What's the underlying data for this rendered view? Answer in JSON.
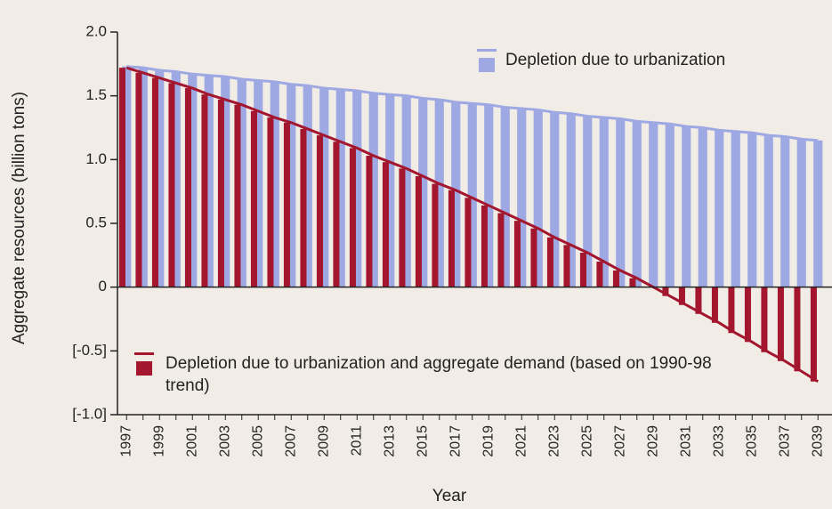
{
  "chart_data": {
    "type": "bar",
    "y_label": "Aggregate resources (billion tons)",
    "x_label": "Year",
    "categories": [
      "1997",
      null,
      "1999",
      null,
      "2001",
      null,
      "2003",
      null,
      "2005",
      null,
      "2007",
      null,
      "2009",
      null,
      "2011",
      null,
      "2013",
      null,
      "2015",
      null,
      "2017",
      null,
      "2019",
      null,
      "2021",
      null,
      "2023",
      null,
      "2025",
      null,
      "2027",
      null,
      "2029",
      null,
      "2031",
      null,
      "2033",
      null,
      "2035",
      null,
      "2037",
      null,
      "2039"
    ],
    "series": [
      {
        "name": "Depletion due to urbanization",
        "color": "#9ea8e2",
        "values": [
          1.73,
          1.72,
          1.7,
          1.69,
          1.67,
          1.66,
          1.65,
          1.63,
          1.62,
          1.61,
          1.59,
          1.58,
          1.56,
          1.55,
          1.54,
          1.52,
          1.51,
          1.5,
          1.48,
          1.47,
          1.45,
          1.44,
          1.43,
          1.41,
          1.4,
          1.39,
          1.37,
          1.36,
          1.34,
          1.33,
          1.32,
          1.3,
          1.29,
          1.28,
          1.26,
          1.25,
          1.23,
          1.22,
          1.21,
          1.19,
          1.18,
          1.16,
          1.15
        ]
      },
      {
        "name": "Depletion due to urbanization and aggregate demand (based on 1990-98 trend)",
        "color": "#a3162e",
        "values": [
          1.72,
          1.68,
          1.64,
          1.6,
          1.56,
          1.51,
          1.47,
          1.43,
          1.38,
          1.33,
          1.29,
          1.24,
          1.19,
          1.14,
          1.09,
          1.03,
          0.98,
          0.93,
          0.87,
          0.81,
          0.76,
          0.7,
          0.64,
          0.58,
          0.52,
          0.46,
          0.39,
          0.33,
          0.27,
          0.2,
          0.13,
          0.07,
          0.0,
          -0.07,
          -0.14,
          -0.21,
          -0.28,
          -0.36,
          -0.43,
          -0.51,
          -0.58,
          -0.66,
          -0.74
        ]
      }
    ],
    "ylim": [
      -1,
      2
    ],
    "yticks": [
      {
        "value": -1,
        "label": "[-1.0]"
      },
      {
        "value": -0.5,
        "label": "[-0.5]"
      },
      0,
      0.5,
      {
        "value": 1,
        "label": "1.0"
      },
      1.5,
      {
        "value": 2,
        "label": "2.0"
      }
    ]
  }
}
